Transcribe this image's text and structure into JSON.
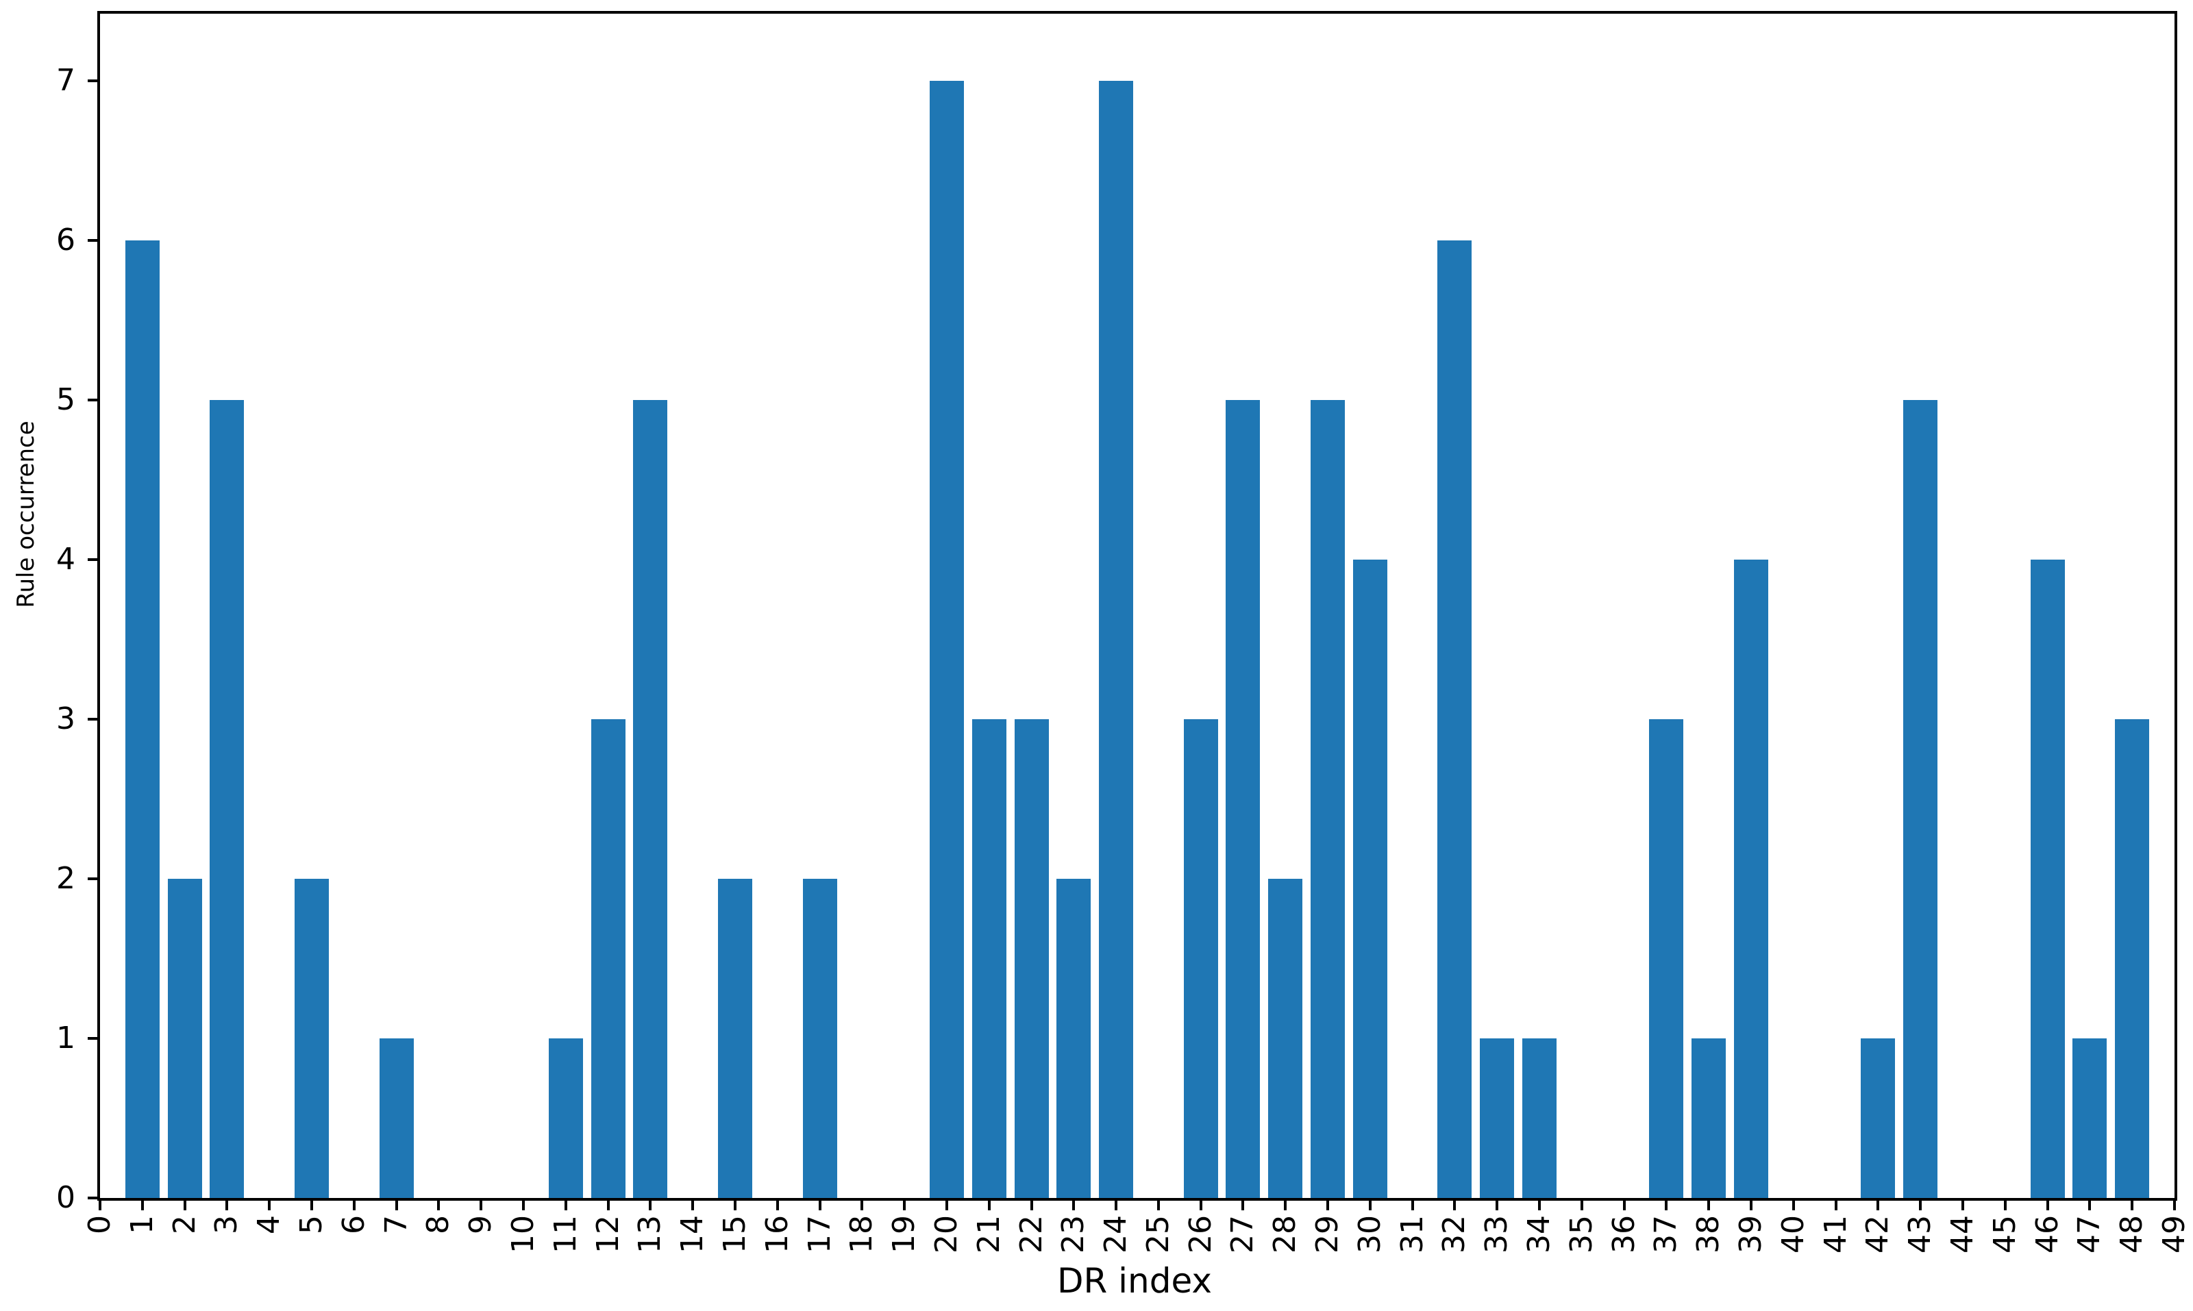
{
  "chart_data": {
    "type": "bar",
    "title": "",
    "xlabel": "DR index",
    "ylabel": "Rule occurrence",
    "categories": [
      0,
      1,
      2,
      3,
      4,
      5,
      6,
      7,
      8,
      9,
      10,
      11,
      12,
      13,
      14,
      15,
      16,
      17,
      18,
      19,
      20,
      21,
      22,
      23,
      24,
      25,
      26,
      27,
      28,
      29,
      30,
      31,
      32,
      33,
      34,
      35,
      36,
      37,
      38,
      39,
      40,
      41,
      42,
      43,
      44,
      45,
      46,
      47,
      48,
      49
    ],
    "values": [
      0,
      6,
      2,
      5,
      0,
      2,
      0,
      1,
      0,
      0,
      0,
      1,
      3,
      5,
      0,
      2,
      0,
      2,
      0,
      0,
      7,
      3,
      3,
      2,
      7,
      0,
      3,
      5,
      2,
      5,
      4,
      0,
      6,
      1,
      1,
      0,
      0,
      3,
      1,
      4,
      0,
      0,
      1,
      5,
      0,
      0,
      4,
      1,
      3,
      0
    ],
    "xticklabels": [
      "0",
      "1",
      "2",
      "3",
      "4",
      "5",
      "6",
      "7",
      "8",
      "9",
      "10",
      "11",
      "12",
      "13",
      "14",
      "15",
      "16",
      "17",
      "18",
      "19",
      "20",
      "21",
      "22",
      "23",
      "24",
      "25",
      "26",
      "27",
      "28",
      "29",
      "30",
      "31",
      "32",
      "33",
      "34",
      "35",
      "36",
      "37",
      "38",
      "39",
      "40",
      "41",
      "42",
      "43",
      "44",
      "45",
      "46",
      "47",
      "48",
      "49"
    ],
    "yticks": [
      0,
      1,
      2,
      3,
      4,
      5,
      6,
      7
    ],
    "yticklabels": [
      "0",
      "1",
      "2",
      "3",
      "4",
      "5",
      "6",
      "7"
    ],
    "xlim": [
      0,
      49
    ],
    "ylim": [
      0,
      7.42
    ],
    "bar_color": "#1f77b4",
    "axis_color": "#000000",
    "grid": false,
    "legend": null
  }
}
